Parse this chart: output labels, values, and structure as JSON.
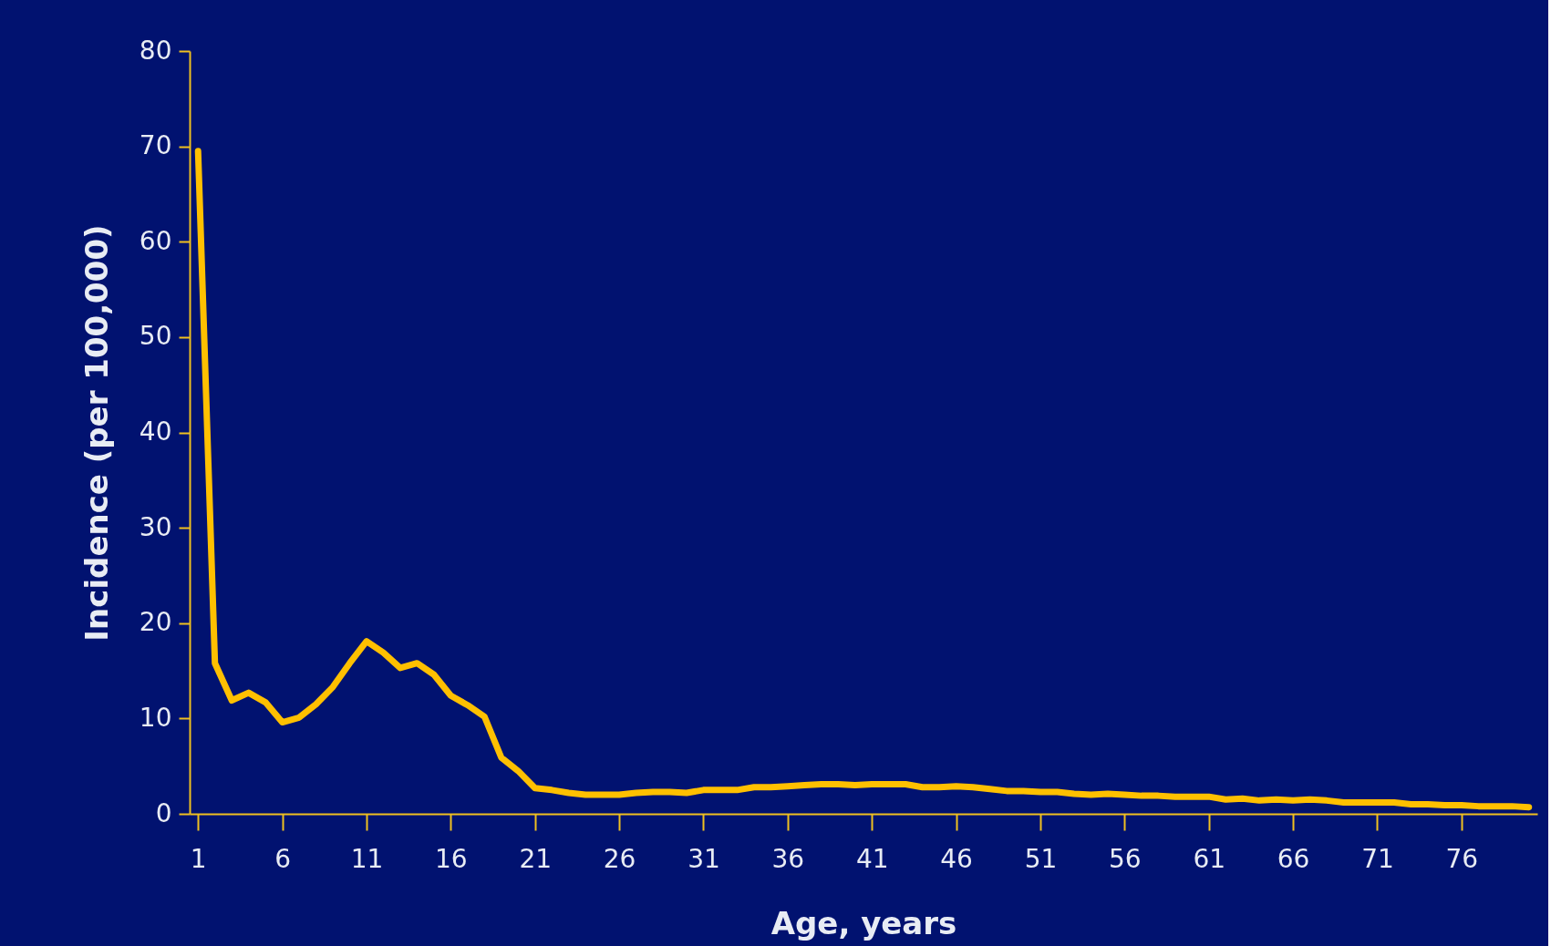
{
  "chart_data": {
    "type": "line",
    "xlabel": "Age, years",
    "ylabel": "Incidence (per 100,000)",
    "x": [
      1,
      2,
      3,
      4,
      5,
      6,
      7,
      8,
      9,
      10,
      11,
      12,
      13,
      14,
      15,
      16,
      17,
      18,
      19,
      20,
      21,
      22,
      23,
      24,
      25,
      26,
      27,
      28,
      29,
      30,
      31,
      32,
      33,
      34,
      35,
      36,
      37,
      38,
      39,
      40,
      41,
      42,
      43,
      44,
      45,
      46,
      47,
      48,
      49,
      50,
      51,
      52,
      53,
      54,
      55,
      56,
      57,
      58,
      59,
      60,
      61,
      62,
      63,
      64,
      65,
      66,
      67,
      68,
      69,
      70,
      71,
      72,
      73,
      74,
      75,
      76,
      77,
      78,
      79,
      80
    ],
    "series": [
      {
        "color": "#ffc000",
        "values": [
          69.5,
          15.8,
          11.9,
          12.7,
          11.7,
          9.6,
          10.1,
          11.5,
          13.3,
          15.8,
          18.1,
          16.9,
          15.3,
          15.8,
          14.6,
          12.4,
          11.4,
          10.2,
          5.9,
          4.5,
          2.7,
          2.5,
          2.2,
          2.0,
          2.0,
          2.0,
          2.2,
          2.3,
          2.3,
          2.2,
          2.5,
          2.5,
          2.5,
          2.8,
          2.8,
          2.9,
          3.0,
          3.1,
          3.1,
          3.0,
          3.1,
          3.1,
          3.1,
          2.8,
          2.8,
          2.9,
          2.8,
          2.6,
          2.4,
          2.4,
          2.3,
          2.3,
          2.1,
          2.0,
          2.1,
          2.0,
          1.9,
          1.9,
          1.8,
          1.8,
          1.8,
          1.5,
          1.6,
          1.4,
          1.5,
          1.4,
          1.5,
          1.4,
          1.2,
          1.2,
          1.2,
          1.2,
          1.0,
          1.0,
          0.9,
          0.9,
          0.8,
          0.8,
          0.8,
          0.7
        ]
      }
    ],
    "xlim": [
      0.5,
      80.5
    ],
    "xticks": [
      1,
      6,
      11,
      16,
      21,
      26,
      31,
      36,
      41,
      46,
      51,
      56,
      61,
      66,
      71,
      76
    ],
    "ylim": [
      0,
      80
    ],
    "yticks": [
      0,
      10,
      20,
      30,
      40,
      50,
      60,
      70,
      80
    ],
    "grid": false,
    "legend": false,
    "marker": "none",
    "line_style": "solid"
  }
}
